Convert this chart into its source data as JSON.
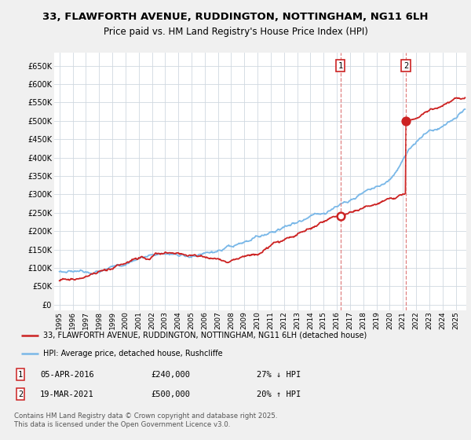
{
  "title_line1": "33, FLAWFORTH AVENUE, RUDDINGTON, NOTTINGHAM, NG11 6LH",
  "title_line2": "Price paid vs. HM Land Registry's House Price Index (HPI)",
  "ytick_labels": [
    "£0",
    "£50K",
    "£100K",
    "£150K",
    "£200K",
    "£250K",
    "£300K",
    "£350K",
    "£400K",
    "£450K",
    "£500K",
    "£550K",
    "£600K",
    "£650K"
  ],
  "yticks": [
    0,
    50000,
    100000,
    150000,
    200000,
    250000,
    300000,
    350000,
    400000,
    450000,
    500000,
    550000,
    600000,
    650000
  ],
  "ylim": [
    -15000,
    685000
  ],
  "xlim_start": 1994.6,
  "xlim_end": 2025.8,
  "xticks": [
    1995,
    1996,
    1997,
    1998,
    1999,
    2000,
    2001,
    2002,
    2003,
    2004,
    2005,
    2006,
    2007,
    2008,
    2009,
    2010,
    2011,
    2012,
    2013,
    2014,
    2015,
    2016,
    2017,
    2018,
    2019,
    2020,
    2021,
    2022,
    2023,
    2024,
    2025
  ],
  "hpi_color": "#7ab8e8",
  "price_color": "#cc2222",
  "vline_color": "#e08080",
  "marker1_year": 2016.27,
  "marker1_price": 240000,
  "marker2_year": 2021.22,
  "marker2_price": 500000,
  "legend_price_label": "33, FLAWFORTH AVENUE, RUDDINGTON, NOTTINGHAM, NG11 6LH (detached house)",
  "legend_hpi_label": "HPI: Average price, detached house, Rushcliffe",
  "footer": "Contains HM Land Registry data © Crown copyright and database right 2025.\nThis data is licensed under the Open Government Licence v3.0.",
  "bg_color": "#f0f0f0",
  "plot_bg_color": "#ffffff",
  "grid_color": "#d0d8e0"
}
